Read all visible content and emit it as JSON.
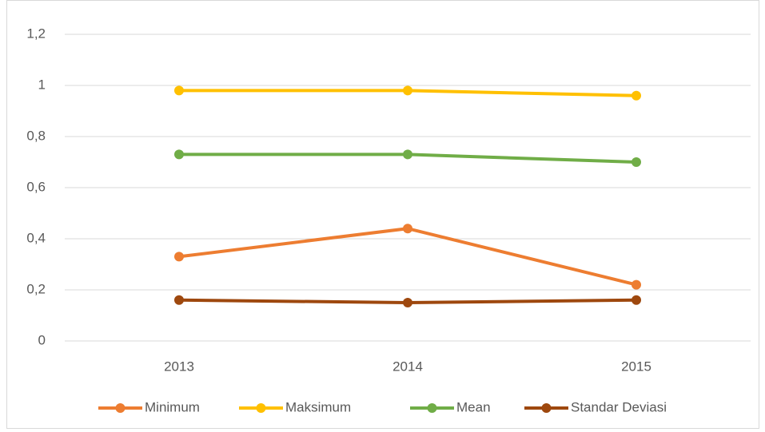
{
  "chart_data": {
    "type": "line",
    "categories": [
      "2013",
      "2014",
      "2015"
    ],
    "series": [
      {
        "name": "Minimum",
        "color": "#ed7d31",
        "values": [
          0.33,
          0.44,
          0.22
        ]
      },
      {
        "name": "Maksimum",
        "color": "#ffc000",
        "values": [
          0.98,
          0.98,
          0.96
        ]
      },
      {
        "name": "Mean",
        "color": "#70ad47",
        "values": [
          0.73,
          0.73,
          0.7
        ]
      },
      {
        "name": "Standar Deviasi",
        "color": "#9e480e",
        "values": [
          0.16,
          0.15,
          0.16
        ]
      }
    ],
    "ylim": [
      0,
      1.2
    ],
    "yticks": [
      0,
      {
        "value": 0.2,
        "label": "0,2"
      },
      {
        "value": 0.4,
        "label": "0,4"
      },
      {
        "value": 0.6,
        "label": "0,6"
      },
      {
        "value": 0.8,
        "label": "0,8"
      },
      1,
      {
        "value": 1.2,
        "label": "1,2"
      }
    ],
    "grid": true,
    "legend": "bottom"
  }
}
